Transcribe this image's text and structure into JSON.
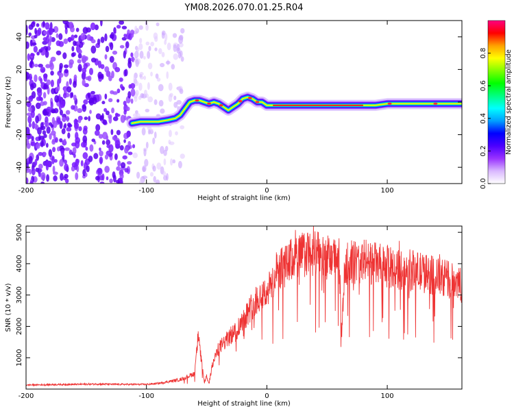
{
  "page": {
    "title": "YM08.2026.070.01.25.R04"
  },
  "chart_data": [
    {
      "type": "heatmap",
      "title": "YM08.2026.070.01.25.R04",
      "xlabel": "Height of straight line (km)",
      "ylabel": "Frequency (Hz)",
      "xlim": [
        -200,
        162
      ],
      "ylim": [
        -50,
        50
      ],
      "xticks": [
        -200,
        -100,
        0,
        100
      ],
      "yticks": [
        -40,
        -20,
        0,
        20,
        40
      ],
      "colorbar": {
        "label": "Normalized spectral amplitude",
        "range": [
          0,
          1
        ],
        "ticks": [
          "0.0",
          "0.2",
          "0.4",
          "0.6",
          "0.8"
        ],
        "colors": [
          "#ffffff",
          "#d9b8ff",
          "#9933ff",
          "#4b00ff",
          "#0000ff",
          "#00a0ff",
          "#00ffff",
          "#00ff80",
          "#00ff00",
          "#80ff00",
          "#ffff00",
          "#ffa000",
          "#ff0000",
          "#ff0080"
        ]
      },
      "ridge": {
        "x": [
          -112,
          -105,
          -98,
          -90,
          -82,
          -76,
          -72,
          -68,
          -64,
          -60,
          -56,
          -52,
          -48,
          -44,
          -40,
          -36,
          -32,
          -28,
          -24,
          -20,
          -16,
          -12,
          -8,
          -4,
          0,
          5,
          20,
          40,
          60,
          80,
          90,
          100,
          120,
          140,
          162
        ],
        "y": [
          -13,
          -12,
          -12,
          -12,
          -11,
          -10,
          -8,
          -4,
          0,
          1,
          1,
          0,
          -1,
          0,
          -1,
          -3,
          -5,
          -3,
          -1,
          2,
          3,
          2,
          0,
          0,
          -2,
          -2,
          -2,
          -2,
          -2,
          -2,
          -2,
          -1,
          -1,
          -1,
          -1
        ]
      },
      "noise": {
        "xrange": [
          -200,
          -70
        ],
        "yrange": [
          -50,
          50
        ]
      }
    },
    {
      "type": "line",
      "xlabel": "Height of straight line (km)",
      "ylabel": "SNR (10 * v/v)",
      "xlim": [
        -200,
        162
      ],
      "ylim": [
        0,
        5200
      ],
      "xticks": [
        -200,
        -100,
        0,
        100
      ],
      "yticks": [
        1000,
        2000,
        3000,
        4000,
        5000
      ],
      "color": "#ee3333",
      "series": [
        {
          "x": [
            -200,
            -180,
            -160,
            -140,
            -120,
            -100,
            -90,
            -80,
            -72,
            -66,
            -60,
            -57,
            -54,
            -52,
            -50,
            -48,
            -45,
            -40,
            -35,
            -30,
            -25,
            -20,
            -15,
            -10,
            -5,
            0,
            5,
            10,
            15,
            20,
            30,
            40,
            50,
            55,
            60,
            62,
            65,
            70,
            75,
            80,
            90,
            100,
            110,
            120,
            130,
            140,
            150,
            162
          ],
          "y": [
            130,
            140,
            150,
            160,
            150,
            150,
            180,
            250,
            300,
            400,
            500,
            1700,
            800,
            200,
            400,
            200,
            800,
            1300,
            1500,
            1700,
            1900,
            2200,
            2500,
            2800,
            3000,
            3100,
            3400,
            3800,
            3900,
            4100,
            4300,
            4300,
            4200,
            4100,
            4200,
            1700,
            4000,
            4100,
            4000,
            4100,
            4000,
            3900,
            3800,
            3800,
            3700,
            3600,
            3500,
            3300
          ]
        }
      ]
    }
  ]
}
